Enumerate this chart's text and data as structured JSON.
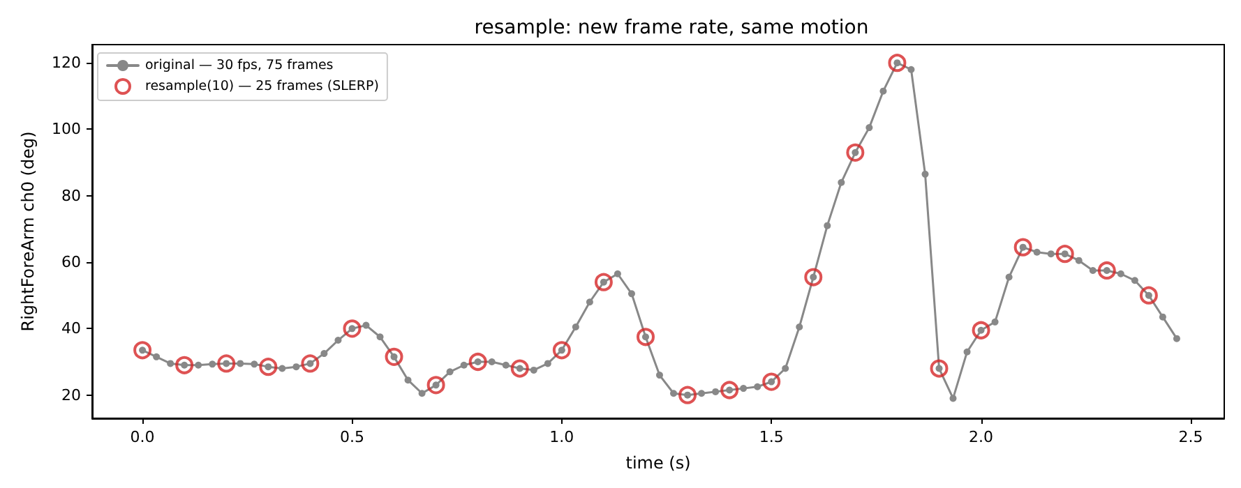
{
  "chart_data": {
    "type": "line",
    "title": "resample: new frame rate, same motion",
    "xlabel": "time (s)",
    "ylabel": "RightForeArm ch0 (deg)",
    "xlim": [
      -0.12,
      2.58
    ],
    "xticks": [
      {
        "value": 0,
        "label": "0.0"
      },
      {
        "value": 0.5,
        "label": "0.5"
      },
      {
        "value": 1,
        "label": "1.0"
      },
      {
        "value": 1.5,
        "label": "1.5"
      },
      {
        "value": 2,
        "label": "2.0"
      },
      {
        "value": 2.5,
        "label": "2.5"
      }
    ],
    "ylim": [
      13,
      125.5
    ],
    "yticks": [
      20,
      40,
      60,
      80,
      100,
      120
    ],
    "grid": false,
    "legend": "top left",
    "series": [
      {
        "name": "original — 30 fps, 75 frames",
        "type": "line",
        "marker": "circle",
        "line_style": "solid",
        "color": "#888888",
        "x": [
          0,
          0.0333,
          0.0667,
          0.1,
          0.1333,
          0.1667,
          0.2,
          0.2333,
          0.2667,
          0.3,
          0.3333,
          0.3667,
          0.4,
          0.4333,
          0.4667,
          0.5,
          0.5333,
          0.5667,
          0.6,
          0.6333,
          0.6667,
          0.7,
          0.7333,
          0.7667,
          0.8,
          0.8333,
          0.8667,
          0.9,
          0.9333,
          0.9667,
          1.0,
          1.0333,
          1.0667,
          1.1,
          1.1333,
          1.1667,
          1.2,
          1.2333,
          1.2667,
          1.3,
          1.3333,
          1.3667,
          1.4,
          1.4333,
          1.4667,
          1.5,
          1.5333,
          1.5667,
          1.6,
          1.6333,
          1.6667,
          1.7,
          1.7333,
          1.7667,
          1.8,
          1.8333,
          1.8667,
          1.9,
          1.9333,
          1.9667,
          2.0,
          2.0333,
          2.0667,
          2.1,
          2.1333,
          2.1667,
          2.2,
          2.2333,
          2.2667,
          2.3,
          2.3333,
          2.3667,
          2.4,
          2.4333,
          2.4667
        ],
        "values": [
          33.5,
          31.5,
          29.5,
          29,
          29,
          29.3,
          29.5,
          29.5,
          29.3,
          28.5,
          28,
          28.5,
          29.5,
          32.5,
          36.5,
          40,
          41,
          37.5,
          31.5,
          24.5,
          20.5,
          23,
          27,
          29,
          30,
          30,
          29,
          28,
          27.5,
          29.5,
          33.5,
          40.5,
          48,
          54,
          56.5,
          50.5,
          37.5,
          26,
          20.5,
          20,
          20.5,
          21,
          21.5,
          22,
          22.5,
          24,
          28,
          40.5,
          55.5,
          71,
          84,
          93,
          100.5,
          111.5,
          120,
          118,
          86.5,
          28,
          19,
          33,
          39.5,
          42,
          55.5,
          64.5,
          63,
          62.5,
          62.5,
          60.5,
          57.5,
          57.5,
          56.5,
          54.5,
          50,
          43.5,
          37
        ]
      },
      {
        "name": "resample(10) — 25 frames (SLERP)",
        "type": "scatter",
        "marker": "circle",
        "color": "#d62728",
        "x": [
          0,
          0.1,
          0.2,
          0.3,
          0.4,
          0.5,
          0.6,
          0.7,
          0.8,
          0.9,
          1.0,
          1.1,
          1.2,
          1.3,
          1.4,
          1.5,
          1.6,
          1.7,
          1.8,
          1.9,
          2.0,
          2.1,
          2.2,
          2.3,
          2.4
        ],
        "values": [
          33.5,
          29,
          29.5,
          28.5,
          29.5,
          40,
          31.5,
          23,
          30,
          28,
          33.5,
          54,
          37.5,
          20,
          21.5,
          24,
          55.5,
          93,
          120,
          28,
          39.5,
          64.5,
          62.5,
          57.5,
          50
        ]
      }
    ]
  }
}
